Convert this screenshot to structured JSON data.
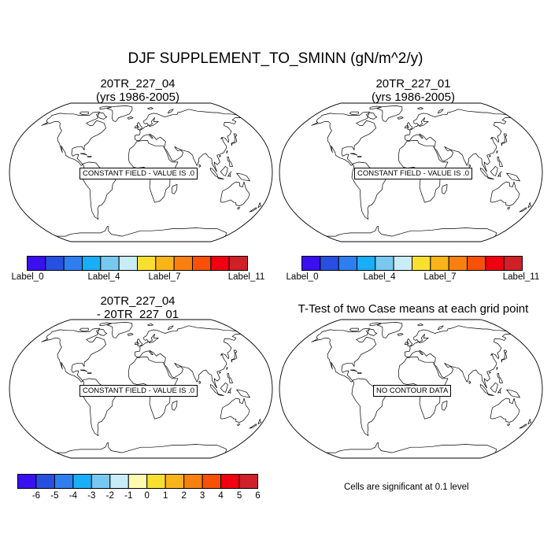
{
  "figure": {
    "title": "DJF SUPPLEMENT_TO_SMINN (gN/m^2/y)"
  },
  "panels": [
    {
      "id": "case1",
      "title_line1": "20TR_227_04",
      "title_line2": "(yrs 1986-2005)",
      "message": "CONSTANT FIELD - VALUE IS .0"
    },
    {
      "id": "case2",
      "title_line1": "20TR_227_01",
      "title_line2": "(yrs 1986-2005)",
      "message": "CONSTANT FIELD - VALUE IS .0"
    },
    {
      "id": "difference",
      "title_line1": "20TR_227_04",
      "title_line2": "- 20TR_227_01",
      "message": "CONSTANT FIELD - VALUE IS .0"
    },
    {
      "id": "ttest",
      "title_line1": "T-Test of two Case means at each grid point",
      "message": "NO CONTOUR DATA",
      "footnote": "Cells are significant at 0.1 level"
    }
  ],
  "colorbars": {
    "case": {
      "colors": [
        "#3a10f0",
        "#2850e0",
        "#2e7ef0",
        "#18aef8",
        "#78c8f0",
        "#c8ecf8",
        "#f8e030",
        "#f8b418",
        "#f88010",
        "#f85008",
        "#f00010",
        "#d02028"
      ],
      "labels": [
        "Label_0",
        "Label_4",
        "Label_7",
        "Label_11"
      ]
    },
    "diff": {
      "colors": [
        "#3a10f0",
        "#2850e0",
        "#2e7ef0",
        "#18aef8",
        "#78c8f0",
        "#c8ecf8",
        "#fffab0",
        "#f8e030",
        "#f8b418",
        "#f88010",
        "#f85008",
        "#f00010",
        "#d02028"
      ],
      "labels": [
        "-6",
        "-5",
        "-4",
        "-3",
        "-2",
        "-1",
        "0",
        "1",
        "2",
        "3",
        "4",
        "5",
        "6"
      ]
    }
  }
}
